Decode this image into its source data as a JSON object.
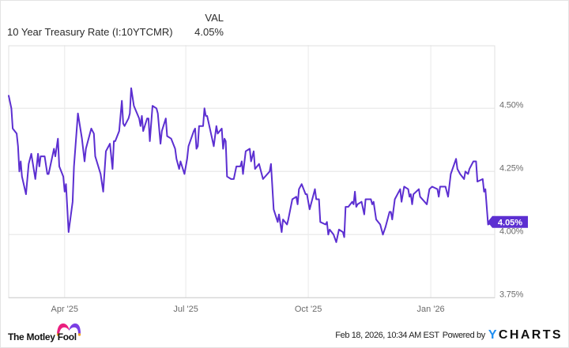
{
  "header": {
    "column_label": "VAL",
    "series_name": "10 Year Treasury Rate (I:10YTCMR)",
    "series_value": "4.05%"
  },
  "footer": {
    "brand_left": "The Motley Fool",
    "timestamp": "Feb 18, 2026, 10:34 AM EST",
    "powered_by": "Powered by",
    "brand_right_y": "Y",
    "brand_right_rest": "CHARTS"
  },
  "colors": {
    "line": "#5c2fd1",
    "gridline": "#ececec",
    "frame": "#e0e0e0",
    "tick_text": "#6b6b6b",
    "ycharts_y": "#1f8ef1",
    "motley_pink": "#ea1f7f",
    "motley_purple": "#7b3fe4",
    "motley_dot": "#f5a623"
  },
  "chart_data": {
    "type": "line",
    "title": "10 Year Treasury Rate (I:10YTCMR)",
    "xlabel": "",
    "ylabel": "",
    "xlim": [
      "2025-02-18",
      "2026-02-18"
    ],
    "ylim": [
      3.75,
      4.75
    ],
    "grid": true,
    "legend": {
      "position": "top-left",
      "entries": [
        "10 Year Treasury Rate (I:10YTCMR)"
      ],
      "column": "VAL"
    },
    "y_ticks": [
      {
        "value": 4.5,
        "label": "4.50%"
      },
      {
        "value": 4.25,
        "label": "4.25%"
      },
      {
        "value": 4.0,
        "label": "4.00%"
      },
      {
        "value": 3.75,
        "label": "3.75%"
      }
    ],
    "x_ticks": [
      {
        "date": "2025-04-01",
        "label": "Apr '25"
      },
      {
        "date": "2025-07-01",
        "label": "Jul '25"
      },
      {
        "date": "2025-10-01",
        "label": "Oct '25"
      },
      {
        "date": "2026-01-01",
        "label": "Jan '26"
      }
    ],
    "last_value_label": "4.05%",
    "x": [
      "2025-02-18",
      "2025-02-20",
      "2025-02-21",
      "2025-02-24",
      "2025-02-25",
      "2025-02-26",
      "2025-02-27",
      "2025-02-28",
      "2025-03-03",
      "2025-03-05",
      "2025-03-07",
      "2025-03-10",
      "2025-03-12",
      "2025-03-13",
      "2025-03-14",
      "2025-03-17",
      "2025-03-19",
      "2025-03-20",
      "2025-03-24",
      "2025-03-25",
      "2025-03-27",
      "2025-03-28",
      "2025-03-31",
      "2025-04-01",
      "2025-04-02",
      "2025-04-04",
      "2025-04-07",
      "2025-04-08",
      "2025-04-11",
      "2025-04-14",
      "2025-04-16",
      "2025-04-17",
      "2025-04-21",
      "2025-04-23",
      "2025-04-24",
      "2025-04-28",
      "2025-04-30",
      "2025-05-02",
      "2025-05-05",
      "2025-05-07",
      "2025-05-08",
      "2025-05-09",
      "2025-05-12",
      "2025-05-14",
      "2025-05-15",
      "2025-05-16",
      "2025-05-19",
      "2025-05-20",
      "2025-05-21",
      "2025-05-23",
      "2025-05-27",
      "2025-05-28",
      "2025-05-29",
      "2025-05-30",
      "2025-06-02",
      "2025-06-03",
      "2025-06-04",
      "2025-06-06",
      "2025-06-09",
      "2025-06-10",
      "2025-06-12",
      "2025-06-13",
      "2025-06-16",
      "2025-06-17",
      "2025-06-20",
      "2025-06-23",
      "2025-06-24",
      "2025-06-26",
      "2025-06-27",
      "2025-06-30",
      "2025-07-02",
      "2025-07-03",
      "2025-07-07",
      "2025-07-08",
      "2025-07-09",
      "2025-07-10",
      "2025-07-11",
      "2025-07-14",
      "2025-07-15",
      "2025-07-16",
      "2025-07-17",
      "2025-07-22",
      "2025-07-24",
      "2025-07-25",
      "2025-07-28",
      "2025-07-29",
      "2025-07-30",
      "2025-07-31",
      "2025-08-01",
      "2025-08-04",
      "2025-08-06",
      "2025-08-08",
      "2025-08-11",
      "2025-08-12",
      "2025-08-13",
      "2025-08-15",
      "2025-08-18",
      "2025-08-19",
      "2025-08-21",
      "2025-08-22",
      "2025-08-25",
      "2025-08-28",
      "2025-09-02",
      "2025-09-03",
      "2025-09-05",
      "2025-09-08",
      "2025-09-09",
      "2025-09-11",
      "2025-09-12",
      "2025-09-15",
      "2025-09-16",
      "2025-09-19",
      "2025-09-22",
      "2025-09-23",
      "2025-09-24",
      "2025-09-26",
      "2025-09-29",
      "2025-09-30",
      "2025-10-02",
      "2025-10-06",
      "2025-10-07",
      "2025-10-09",
      "2025-10-10",
      "2025-10-14",
      "2025-10-15",
      "2025-10-16",
      "2025-10-17",
      "2025-10-20",
      "2025-10-22",
      "2025-10-24",
      "2025-10-27",
      "2025-10-28",
      "2025-10-29",
      "2025-10-31",
      "2025-11-03",
      "2025-11-04",
      "2025-11-05",
      "2025-11-06",
      "2025-11-07",
      "2025-11-10",
      "2025-11-12",
      "2025-11-13",
      "2025-11-17",
      "2025-11-18",
      "2025-11-19",
      "2025-11-21",
      "2025-11-24",
      "2025-11-26",
      "2025-11-28",
      "2025-12-01",
      "2025-12-02",
      "2025-12-03",
      "2025-12-05",
      "2025-12-09",
      "2025-12-10",
      "2025-12-12",
      "2025-12-15",
      "2025-12-16",
      "2025-12-17",
      "2025-12-18",
      "2025-12-19",
      "2025-12-23",
      "2025-12-24",
      "2025-12-29",
      "2025-12-31",
      "2026-01-02",
      "2026-01-06",
      "2026-01-07",
      "2026-01-08",
      "2026-01-12",
      "2026-01-14",
      "2026-01-16",
      "2026-01-20",
      "2026-01-21",
      "2026-01-23",
      "2026-01-26",
      "2026-01-27",
      "2026-01-29",
      "2026-01-30",
      "2026-02-02",
      "2026-02-03",
      "2026-02-04",
      "2026-02-05",
      "2026-02-09",
      "2026-02-10",
      "2026-02-11",
      "2026-02-13",
      "2026-02-17"
    ],
    "series": [
      {
        "name": "10 Year Treasury Rate (I:10YTCMR)",
        "unit": "%",
        "values": [
          4.55,
          4.5,
          4.42,
          4.4,
          4.35,
          4.25,
          4.29,
          4.23,
          4.16,
          4.28,
          4.32,
          4.22,
          4.32,
          4.27,
          4.31,
          4.31,
          4.24,
          4.24,
          4.34,
          4.31,
          4.38,
          4.27,
          4.23,
          4.17,
          4.2,
          4.01,
          4.13,
          4.27,
          4.48,
          4.38,
          4.29,
          4.34,
          4.42,
          4.4,
          4.31,
          4.24,
          4.17,
          4.33,
          4.36,
          4.26,
          4.37,
          4.37,
          4.41,
          4.53,
          4.44,
          4.43,
          4.46,
          4.48,
          4.58,
          4.51,
          4.46,
          4.43,
          4.47,
          4.41,
          4.46,
          4.46,
          4.37,
          4.51,
          4.5,
          4.48,
          4.36,
          4.41,
          4.46,
          4.39,
          4.38,
          4.34,
          4.3,
          4.26,
          4.29,
          4.24,
          4.3,
          4.35,
          4.41,
          4.42,
          4.34,
          4.35,
          4.43,
          4.43,
          4.5,
          4.47,
          4.47,
          4.35,
          4.43,
          4.4,
          4.42,
          4.34,
          4.38,
          4.37,
          4.23,
          4.22,
          4.22,
          4.27,
          4.27,
          4.29,
          4.24,
          4.33,
          4.34,
          4.29,
          4.33,
          4.26,
          4.28,
          4.22,
          4.25,
          4.28,
          4.1,
          4.05,
          4.08,
          4.01,
          4.06,
          4.04,
          4.06,
          4.14,
          4.15,
          4.12,
          4.18,
          4.2,
          4.16,
          4.16,
          4.1,
          4.18,
          4.14,
          4.14,
          4.05,
          4.04,
          4.05,
          4.0,
          4.02,
          4.0,
          3.97,
          4.02,
          4.01,
          3.99,
          4.11,
          4.11,
          4.13,
          4.12,
          4.17,
          4.11,
          4.12,
          4.13,
          4.08,
          4.14,
          4.14,
          4.12,
          4.13,
          4.06,
          4.04,
          4.0,
          4.03,
          4.09,
          4.09,
          4.06,
          4.14,
          4.18,
          4.13,
          4.19,
          4.18,
          4.15,
          4.16,
          4.12,
          4.16,
          4.18,
          4.15,
          4.12,
          4.18,
          4.19,
          4.18,
          4.15,
          4.19,
          4.19,
          4.15,
          4.24,
          4.3,
          4.26,
          4.24,
          4.22,
          4.25,
          4.24,
          4.26,
          4.29,
          4.29,
          4.29,
          4.21,
          4.22,
          4.17,
          4.18,
          4.04,
          4.05
        ]
      }
    ]
  }
}
